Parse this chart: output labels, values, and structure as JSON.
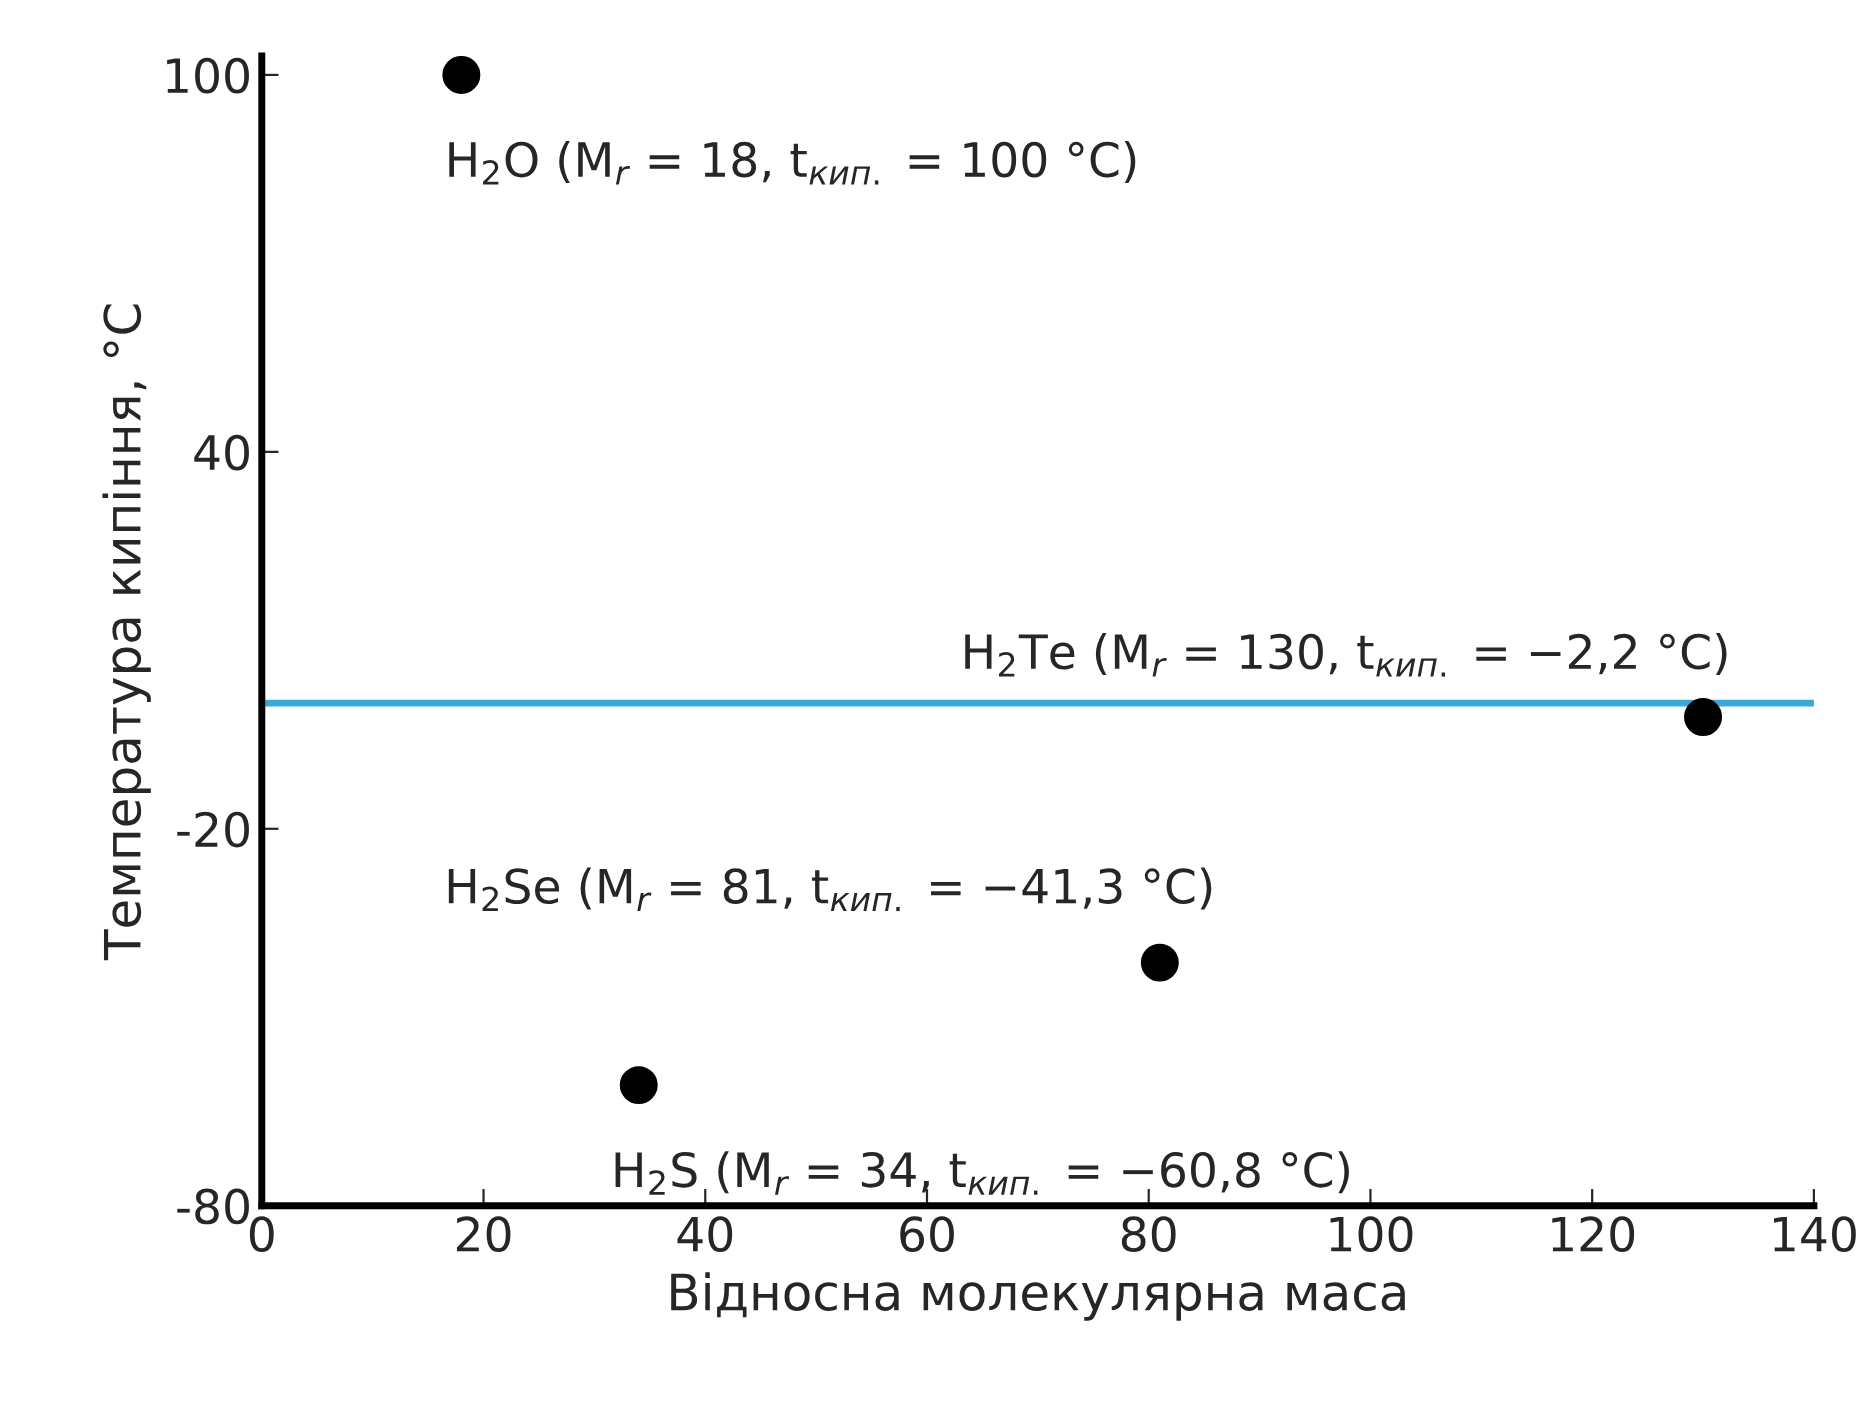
{
  "chart_data": {
    "type": "scatter",
    "xlabel": "Відносна молекулярна маса",
    "ylabel": "Температура кипіння, °C",
    "x": [
      18,
      34,
      81,
      130
    ],
    "series": [
      {
        "color": "#000000",
        "values": [
          100,
          -60.8,
          -41.3,
          -2.2
        ]
      }
    ],
    "marker": "circle",
    "xlim": [
      0,
      140
    ],
    "xticks": [
      0,
      20,
      40,
      60,
      80,
      100,
      120,
      140
    ],
    "ylim": [
      -80,
      103
    ],
    "yticks": [
      -80,
      -20,
      40,
      100
    ],
    "grid": false,
    "legend": false,
    "ref_lines": [
      {
        "axis": "y",
        "value": 0,
        "color": "#3aa8d8"
      }
    ],
    "annotations": [
      {
        "text": "H$_{2}$O (M$_{r}$ = 18, t$_{кип.}$ = 100 °C)",
        "x": 18,
        "y": 100
      },
      {
        "text": "H$_{2}$S (M$_{r}$ = 34, t$_{кип.}$ = −60,8 °C)",
        "x": 34,
        "y": -60.8
      },
      {
        "text": "H$_{2}$Se (M$_{r}$ = 81, t$_{кип.}$ = −41,3 °C)",
        "x": 81,
        "y": -41.3
      },
      {
        "text": "H$_{2}$Te (M$_{r}$ = 130, t$_{кип.}$ = −2,2 °C)",
        "x": 130,
        "y": -2.2
      }
    ]
  }
}
